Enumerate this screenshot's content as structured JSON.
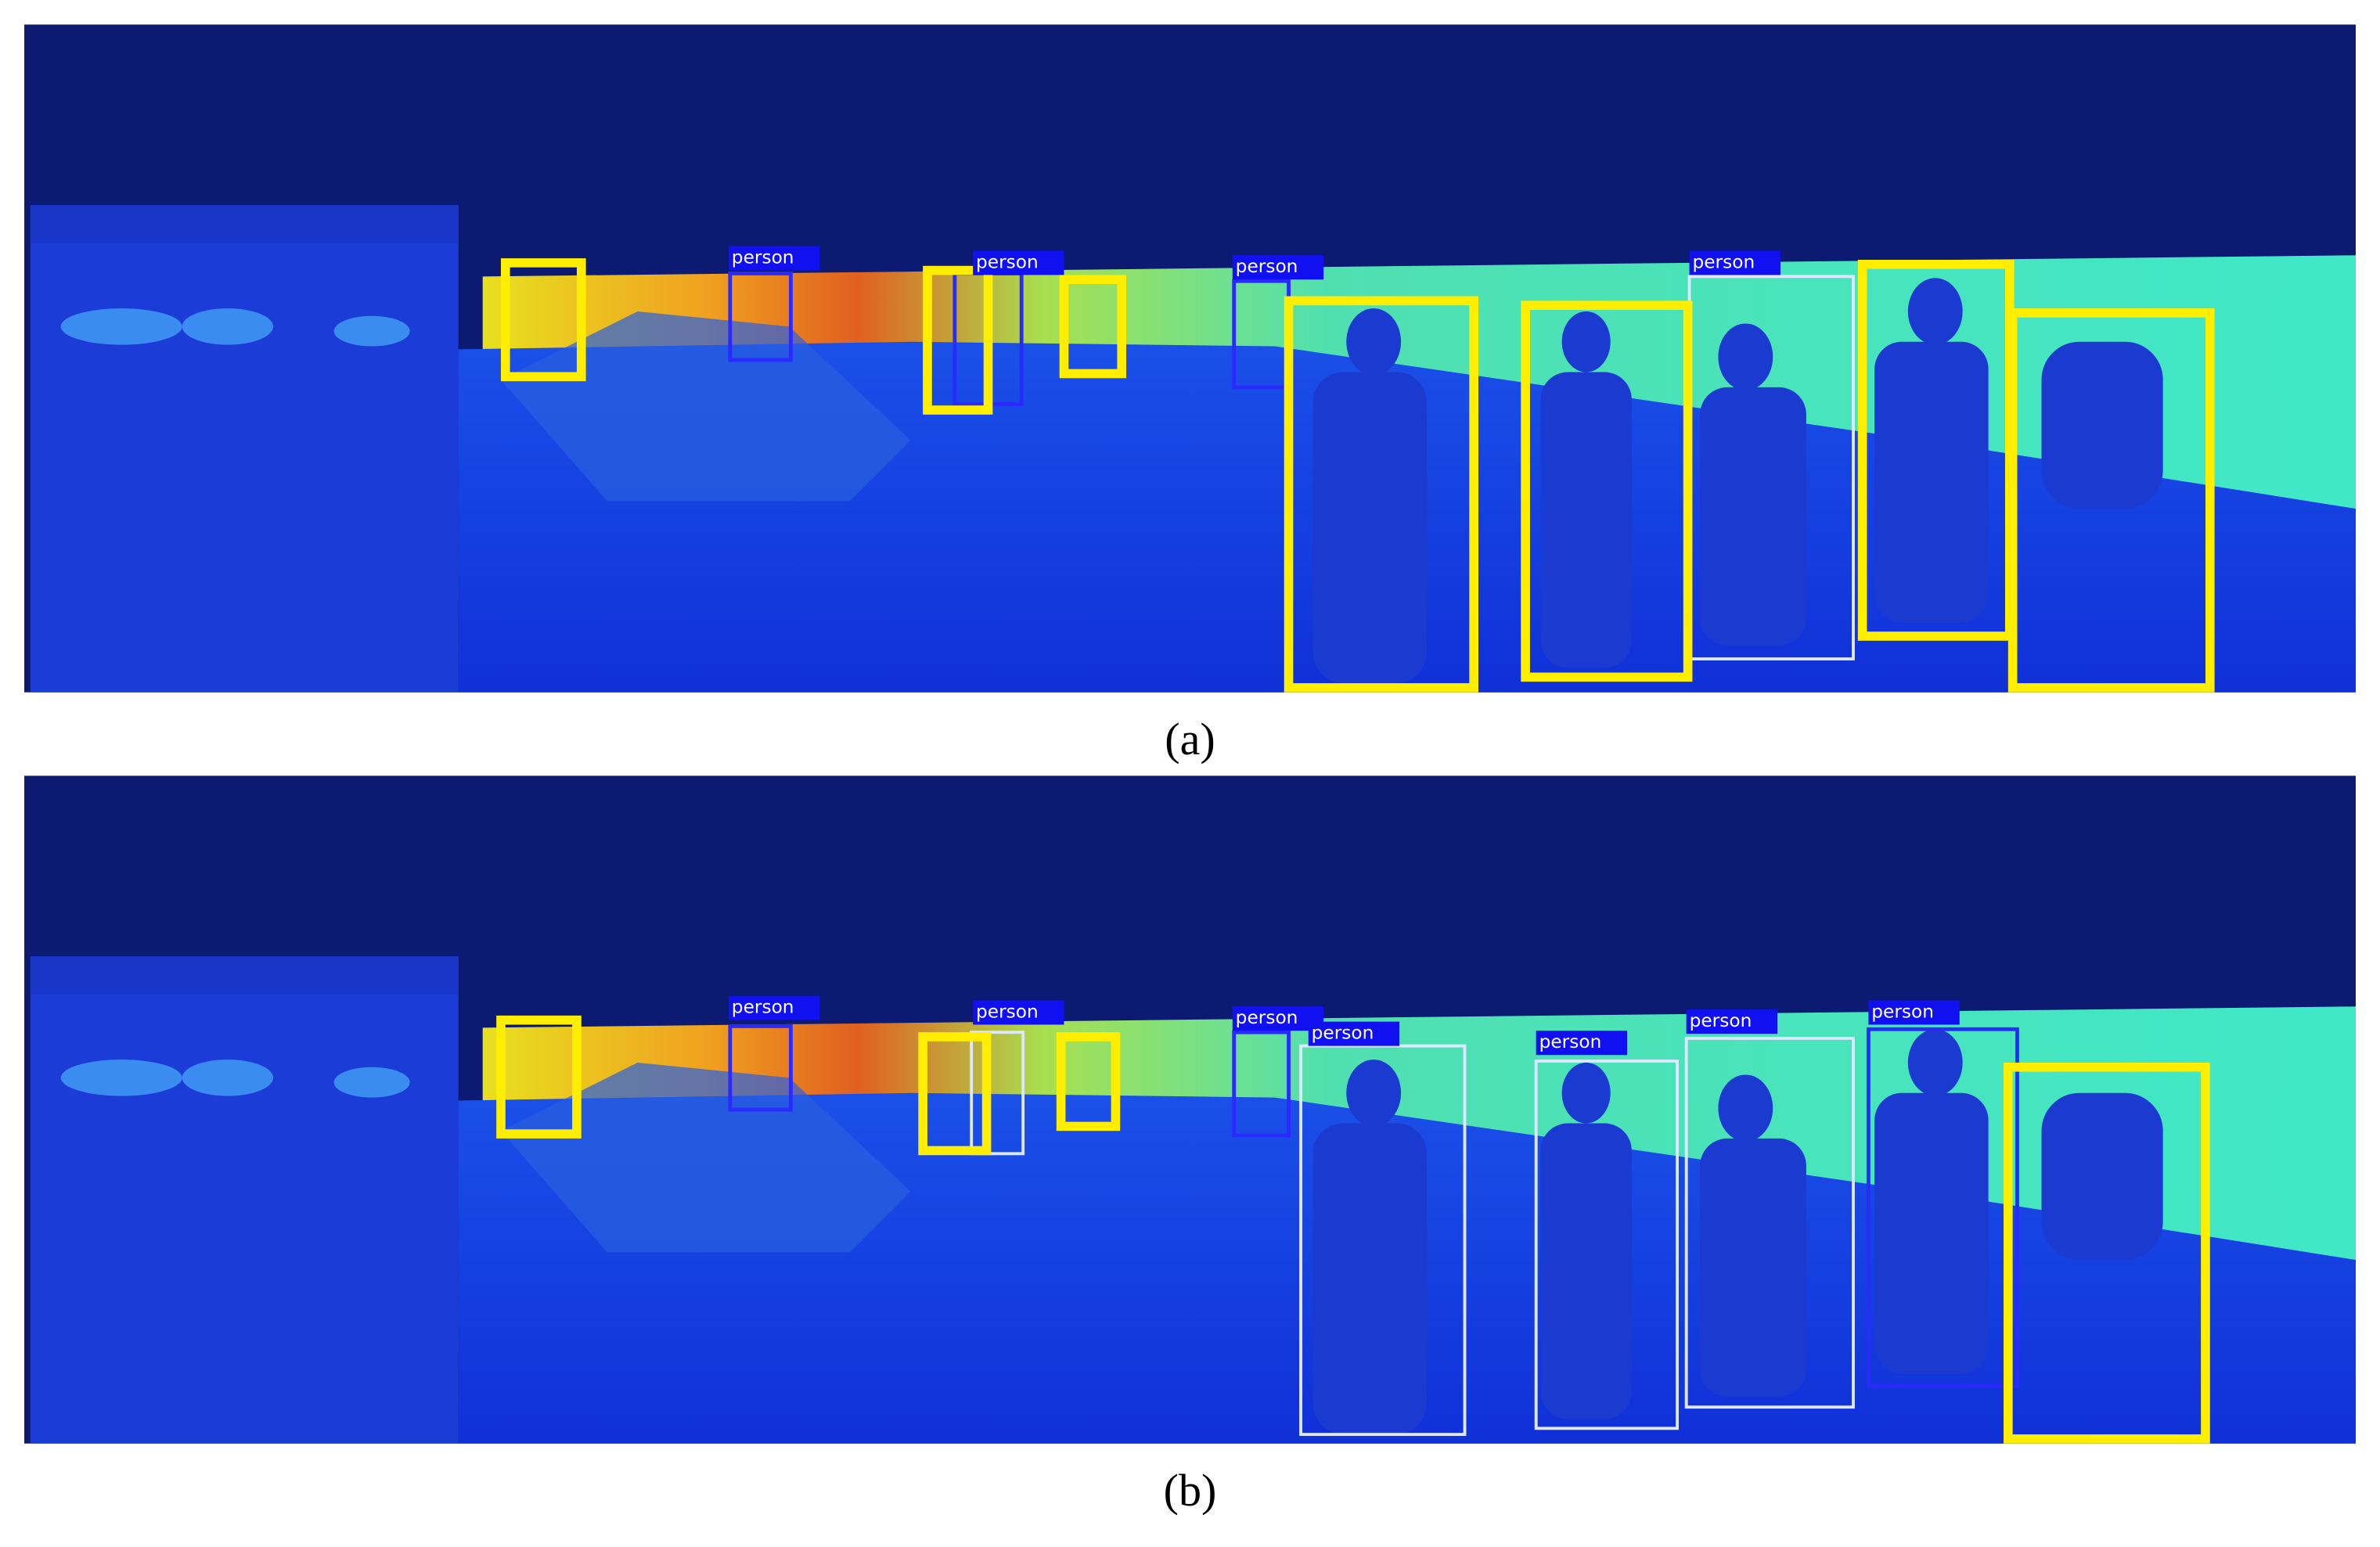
{
  "panels": [
    {
      "labels": [
        "person",
        "person",
        "person",
        "person"
      ],
      "caption": "(a)"
    },
    {
      "labels": [
        "person",
        "person",
        "person",
        "person",
        "person",
        "person",
        "person"
      ],
      "caption": "(b)"
    }
  ]
}
